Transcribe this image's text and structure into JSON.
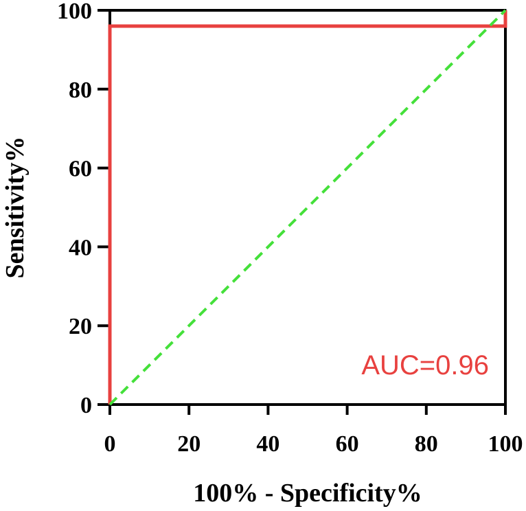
{
  "chart_data": {
    "type": "line",
    "xlabel": "100% - Specificity%",
    "ylabel": "Sensitivity%",
    "xlim": [
      0,
      100
    ],
    "ylim": [
      0,
      100
    ],
    "x_ticks": [
      0,
      20,
      40,
      60,
      80,
      100
    ],
    "y_ticks": [
      0,
      20,
      40,
      60,
      80,
      100
    ],
    "grid": false,
    "series": [
      {
        "style": "solid",
        "color": "#e8413f",
        "points": [
          [
            0,
            0
          ],
          [
            0,
            96
          ],
          [
            100,
            96
          ],
          [
            100,
            100
          ]
        ]
      },
      {
        "style": "dashed",
        "color": "#44e03a",
        "points": [
          [
            0,
            0
          ],
          [
            100,
            100
          ]
        ]
      }
    ],
    "annotation": {
      "text": "AUC=0.96",
      "color": "#e8413f"
    }
  }
}
